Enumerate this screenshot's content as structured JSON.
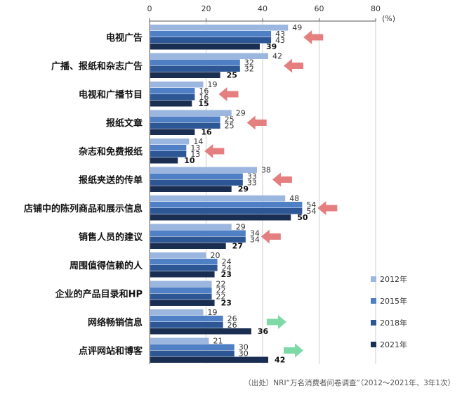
{
  "chart_data": {
    "type": "bar",
    "orientation": "horizontal",
    "unit_label": "(%)",
    "xlim": [
      0,
      80
    ],
    "x_ticks": [
      0,
      20,
      40,
      60,
      80
    ],
    "grid": true,
    "legend_position": "bottom-right",
    "categories": [
      "电视广告",
      "广播、报纸和杂志广告",
      "电视和广播节目",
      "报纸文章",
      "杂志和免费报纸",
      "报纸夹送的传单",
      "店铺中的陈列商品和展示信息",
      "销售人员的建议",
      "周围值得信赖的人",
      "企业的产品目录和HP",
      "网络畅销信息",
      "点评网站和博客"
    ],
    "series": [
      {
        "name": "2012年",
        "color": "#9bb7e0",
        "values": [
          49,
          42,
          19,
          29,
          14,
          38,
          48,
          29,
          20,
          22,
          19,
          21
        ]
      },
      {
        "name": "2015年",
        "color": "#4f7fc4",
        "values": [
          43,
          32,
          16,
          25,
          13,
          33,
          54,
          34,
          24,
          22,
          26,
          30
        ]
      },
      {
        "name": "2018年",
        "color": "#2c5694",
        "values": [
          43,
          32,
          16,
          25,
          13,
          33,
          54,
          34,
          24,
          22,
          26,
          30
        ]
      },
      {
        "name": "2021年",
        "color": "#1a2e52",
        "values": [
          39,
          25,
          15,
          16,
          10,
          29,
          50,
          27,
          23,
          23,
          36,
          42
        ]
      }
    ],
    "trend_arrows": [
      "down",
      "down",
      "down",
      "down",
      "down",
      "down",
      "down",
      "down",
      "none",
      "none",
      "up",
      "up"
    ],
    "arrow_colors": {
      "down": "#e57f7f",
      "up": "#7fd9a6"
    },
    "source_note": "（出处）NRI“万名消费者问卷调查”（2012～2021年、3年1次）"
  }
}
